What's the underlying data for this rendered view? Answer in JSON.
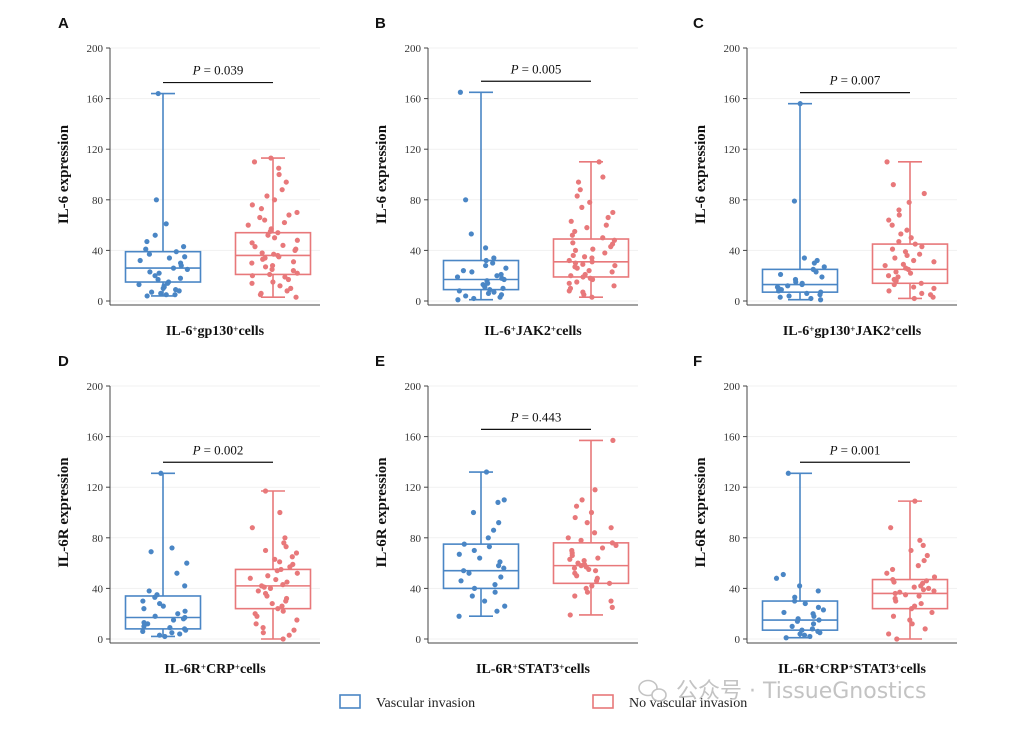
{
  "chart_data": [
    {
      "panel": "A",
      "type": "box",
      "ylabel": "IL-6 expression",
      "xlabel": [
        {
          "t": "IL-6"
        },
        {
          "t": "+",
          "sup": true
        },
        {
          "t": "gp130"
        },
        {
          "t": "+",
          "sup": true
        },
        {
          "t": "cells"
        }
      ],
      "ylim": [
        0,
        200
      ],
      "yticks": [
        0,
        40,
        80,
        120,
        160,
        200
      ],
      "p_prefix": "P",
      "p_value": "= 0.039",
      "series": [
        {
          "name": "Vascular invasion",
          "color": "#4a86c5",
          "min": 4,
          "q1": 15,
          "median": 26,
          "q3": 39,
          "max": 164,
          "points": [
            4,
            5,
            5,
            6,
            7,
            8,
            9,
            10,
            11,
            12,
            13,
            14,
            15,
            17,
            18,
            20,
            22,
            23,
            25,
            26,
            28,
            30,
            32,
            34,
            35,
            37,
            39,
            41,
            43,
            47,
            52,
            61,
            80,
            164
          ]
        },
        {
          "name": "No vascular invasion",
          "color": "#e8787a",
          "min": 3,
          "q1": 21,
          "median": 36,
          "q3": 54,
          "max": 113,
          "points": [
            3,
            5,
            6,
            8,
            10,
            12,
            14,
            15,
            17,
            19,
            20,
            21,
            22,
            24,
            25,
            27,
            28,
            30,
            31,
            33,
            34,
            35,
            36,
            37,
            38,
            40,
            41,
            43,
            44,
            46,
            48,
            50,
            52,
            54,
            55,
            57,
            60,
            62,
            64,
            66,
            68,
            70,
            73,
            76,
            80,
            83,
            88,
            94,
            100,
            105,
            110,
            113
          ]
        }
      ]
    },
    {
      "panel": "B",
      "type": "box",
      "ylabel": "IL-6 expression",
      "xlabel": [
        {
          "t": "IL-6"
        },
        {
          "t": "+",
          "sup": true
        },
        {
          "t": "JAK2"
        },
        {
          "t": "+",
          "sup": true
        },
        {
          "t": "cells"
        }
      ],
      "ylim": [
        0,
        200
      ],
      "yticks": [
        0,
        40,
        80,
        120,
        160,
        200
      ],
      "p_prefix": "P",
      "p_value": "= 0.005",
      "series": [
        {
          "name": "Vascular invasion",
          "color": "#4a86c5",
          "min": 1,
          "q1": 9,
          "median": 17,
          "q3": 32,
          "max": 165,
          "points": [
            1,
            2,
            3,
            4,
            5,
            6,
            7,
            8,
            9,
            10,
            11,
            13,
            14,
            16,
            17,
            18,
            19,
            20,
            21,
            23,
            24,
            26,
            28,
            30,
            32,
            34,
            42,
            53,
            80,
            165
          ]
        },
        {
          "name": "No vascular invasion",
          "color": "#e8787a",
          "min": 3,
          "q1": 19,
          "median": 31,
          "q3": 49,
          "max": 110,
          "points": [
            3,
            5,
            7,
            8,
            10,
            12,
            14,
            15,
            17,
            18,
            19,
            20,
            21,
            23,
            24,
            26,
            27,
            28,
            29,
            30,
            31,
            32,
            34,
            35,
            36,
            38,
            40,
            41,
            43,
            45,
            46,
            48,
            50,
            52,
            55,
            58,
            60,
            63,
            66,
            70,
            74,
            78,
            83,
            88,
            94,
            98,
            110
          ]
        }
      ]
    },
    {
      "panel": "C",
      "type": "box",
      "ylabel": "IL-6 expression",
      "xlabel": [
        {
          "t": "IL-6"
        },
        {
          "t": "+",
          "sup": true
        },
        {
          "t": "gp130"
        },
        {
          "t": "+",
          "sup": true
        },
        {
          "t": "JAK2"
        },
        {
          "t": "+",
          "sup": true
        },
        {
          "t": "cells"
        }
      ],
      "ylim": [
        0,
        200
      ],
      "yticks": [
        0,
        40,
        80,
        120,
        160,
        200
      ],
      "p_prefix": "P",
      "p_value": "= 0.007",
      "series": [
        {
          "name": "Vascular invasion",
          "color": "#4a86c5",
          "min": 1,
          "q1": 7,
          "median": 13,
          "q3": 25,
          "max": 156,
          "points": [
            1,
            2,
            3,
            4,
            5,
            6,
            7,
            8,
            9,
            10,
            11,
            12,
            13,
            14,
            15,
            17,
            19,
            21,
            23,
            25,
            27,
            30,
            32,
            34,
            79,
            156
          ]
        },
        {
          "name": "No vascular invasion",
          "color": "#e8787a",
          "min": 2,
          "q1": 14,
          "median": 25,
          "q3": 45,
          "max": 110,
          "points": [
            2,
            3,
            5,
            6,
            8,
            10,
            11,
            13,
            14,
            16,
            17,
            19,
            20,
            22,
            23,
            25,
            26,
            28,
            29,
            31,
            32,
            34,
            36,
            37,
            39,
            41,
            43,
            45,
            47,
            50,
            53,
            56,
            60,
            64,
            68,
            72,
            78,
            85,
            92,
            110
          ]
        }
      ]
    },
    {
      "panel": "D",
      "type": "box",
      "ylabel": "IL-6R expression",
      "xlabel": [
        {
          "t": "IL-6R"
        },
        {
          "t": "+",
          "sup": true
        },
        {
          "t": "CRP"
        },
        {
          "t": "+",
          "sup": true
        },
        {
          "t": "cells"
        }
      ],
      "ylim": [
        0,
        200
      ],
      "yticks": [
        0,
        40,
        80,
        120,
        160,
        200
      ],
      "p_prefix": "P",
      "p_value": "= 0.002",
      "series": [
        {
          "name": "Vascular invasion",
          "color": "#4a86c5",
          "min": 2,
          "q1": 8,
          "median": 17,
          "q3": 34,
          "max": 131,
          "points": [
            2,
            3,
            4,
            5,
            6,
            7,
            8,
            9,
            10,
            12,
            13,
            15,
            16,
            17,
            18,
            20,
            22,
            24,
            26,
            28,
            30,
            33,
            35,
            38,
            42,
            52,
            60,
            69,
            72,
            131
          ]
        },
        {
          "name": "No vascular invasion",
          "color": "#e8787a",
          "min": 0,
          "q1": 24,
          "median": 42,
          "q3": 55,
          "max": 117,
          "points": [
            0,
            3,
            5,
            7,
            9,
            12,
            15,
            18,
            20,
            22,
            24,
            26,
            28,
            30,
            32,
            34,
            36,
            38,
            40,
            41,
            42,
            43,
            45,
            47,
            48,
            50,
            52,
            54,
            55,
            57,
            59,
            61,
            63,
            65,
            68,
            70,
            73,
            76,
            80,
            88,
            100,
            117
          ]
        }
      ]
    },
    {
      "panel": "E",
      "type": "box",
      "ylabel": "IL-6R expression",
      "xlabel": [
        {
          "t": "IL-6R"
        },
        {
          "t": "+",
          "sup": true
        },
        {
          "t": "STAT3"
        },
        {
          "t": "+",
          "sup": true
        },
        {
          "t": "cells"
        }
      ],
      "ylim": [
        0,
        200
      ],
      "yticks": [
        0,
        40,
        80,
        120,
        160,
        200
      ],
      "p_prefix": "P",
      "p_value": "= 0.443",
      "series": [
        {
          "name": "Vascular invasion",
          "color": "#4a86c5",
          "min": 18,
          "q1": 40,
          "median": 54,
          "q3": 75,
          "max": 132,
          "points": [
            18,
            22,
            26,
            30,
            34,
            37,
            40,
            43,
            46,
            49,
            52,
            54,
            56,
            58,
            61,
            64,
            67,
            70,
            73,
            75,
            80,
            86,
            92,
            100,
            108,
            110,
            132
          ]
        },
        {
          "name": "No vascular invasion",
          "color": "#e8787a",
          "min": 19,
          "q1": 44,
          "median": 58,
          "q3": 76,
          "max": 157,
          "points": [
            19,
            25,
            30,
            34,
            37,
            40,
            42,
            44,
            46,
            48,
            50,
            52,
            54,
            55,
            56,
            57,
            58,
            59,
            60,
            62,
            63,
            64,
            66,
            68,
            70,
            72,
            74,
            76,
            78,
            80,
            84,
            88,
            92,
            96,
            100,
            105,
            110,
            118,
            157
          ]
        }
      ]
    },
    {
      "panel": "F",
      "type": "box",
      "ylabel": "IL-6R expression",
      "xlabel": [
        {
          "t": "IL-6R"
        },
        {
          "t": "+",
          "sup": true
        },
        {
          "t": "CRP"
        },
        {
          "t": "+",
          "sup": true
        },
        {
          "t": "STAT3"
        },
        {
          "t": "+",
          "sup": true
        },
        {
          "t": "cells"
        }
      ],
      "ylim": [
        0,
        200
      ],
      "yticks": [
        0,
        40,
        80,
        120,
        160,
        200
      ],
      "p_prefix": "P",
      "p_value": "= 0.001",
      "series": [
        {
          "name": "Vascular invasion",
          "color": "#4a86c5",
          "min": 1,
          "q1": 7,
          "median": 15,
          "q3": 30,
          "max": 131,
          "points": [
            1,
            2,
            3,
            4,
            5,
            6,
            7,
            8,
            10,
            12,
            14,
            15,
            16,
            18,
            20,
            21,
            23,
            25,
            28,
            30,
            33,
            38,
            42,
            48,
            51,
            131
          ]
        },
        {
          "name": "No vascular invasion",
          "color": "#e8787a",
          "min": 0,
          "q1": 24,
          "median": 36,
          "q3": 47,
          "max": 109,
          "points": [
            0,
            4,
            8,
            12,
            15,
            18,
            21,
            24,
            26,
            28,
            30,
            32,
            34,
            35,
            36,
            37,
            38,
            39,
            40,
            41,
            42,
            44,
            45,
            46,
            47,
            49,
            52,
            55,
            58,
            62,
            66,
            70,
            74,
            78,
            88,
            109
          ]
        }
      ]
    }
  ],
  "legend": [
    {
      "label": "Vascular invasion",
      "color": "#4a86c5"
    },
    {
      "label": "No vascular invasion",
      "color": "#e8787a"
    }
  ],
  "watermark": {
    "text": "公众号 · TissueGnostics",
    "icon": "wechat-icon"
  }
}
